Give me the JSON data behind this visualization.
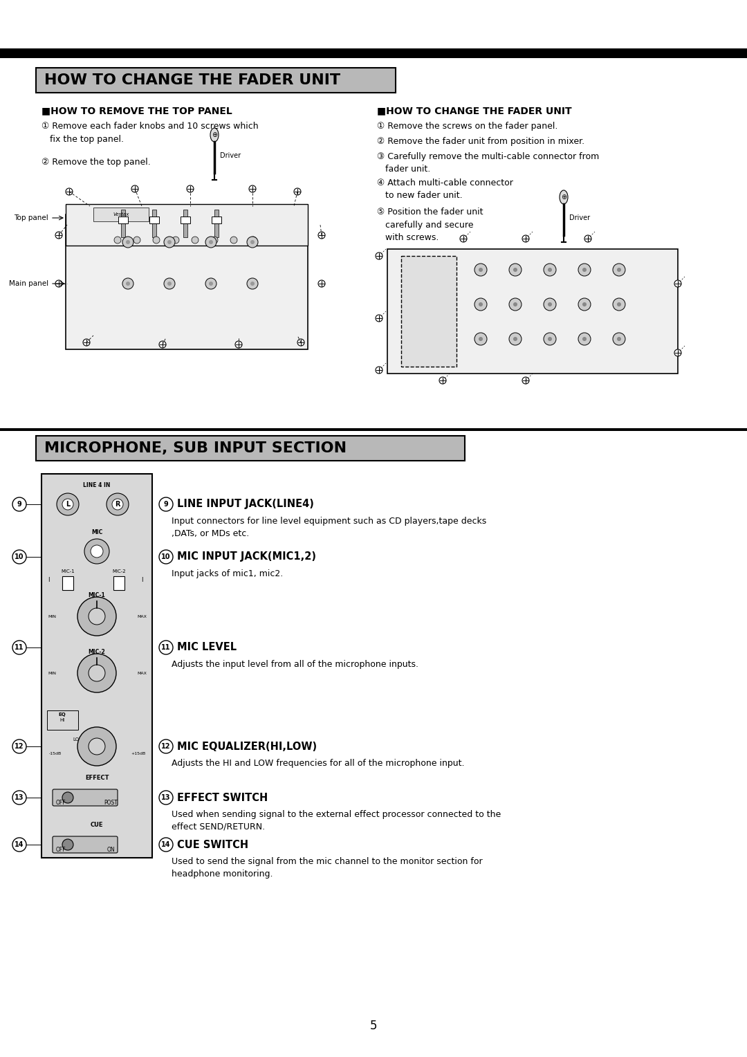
{
  "page_bg": "#ffffff",
  "top_bar_color": "#000000",
  "section1_title": "HOW TO CHANGE THE FADER UNIT",
  "section1_title_bg": "#b8b8b8",
  "section2_title": "MICROPHONE, SUB INPUT SECTION",
  "section2_title_bg": "#b8b8b8",
  "remove_panel_header": "■HOW TO REMOVE THE TOP PANEL",
  "change_fader_header": "■HOW TO CHANGE THE FADER UNIT",
  "remove_steps": [
    "① Remove each fader knobs and 10 screws which\n   fix the top panel.",
    "② Remove the top panel."
  ],
  "change_steps": [
    "① Remove the screws on the fader panel.",
    "② Remove the fader unit from position in mixer.",
    "③ Carefully remove the multi-cable connector from\n   fader unit.",
    "④ Attach multi-cable connector\n   to new fader unit.",
    "⑤ Position the fader unit\n   carefully and secure\n   with screws."
  ],
  "mic_items": [
    {
      "num": "9",
      "title": "LINE INPUT JACK(LINE4)",
      "desc": "Input connectors for line level equipment such as CD players,tape decks\n,DATs, or MDs etc."
    },
    {
      "num": "10",
      "title": "MIC INPUT JACK(MIC1,2)",
      "desc": "Input jacks of mic1, mic2."
    },
    {
      "num": "11",
      "title": "MIC LEVEL",
      "desc": "Adjusts the input level from all of the microphone inputs."
    },
    {
      "num": "12",
      "title": "MIC EQUALIZER(HI,LOW)",
      "desc": "Adjusts the HI and LOW frequencies for all of the microphone input."
    },
    {
      "num": "13",
      "title": "EFFECT SWITCH",
      "desc": "Used when sending signal to the external effect processor connected to the\neffect SEND/RETURN."
    },
    {
      "num": "14",
      "title": "CUE SWITCH",
      "desc": "Used to send the signal from the mic channel to the monitor section for\nheadphone monitoring."
    }
  ],
  "page_number": "5",
  "top_panel_label": "Top panel",
  "main_panel_label": "Main panel",
  "driver_label": "Driver"
}
